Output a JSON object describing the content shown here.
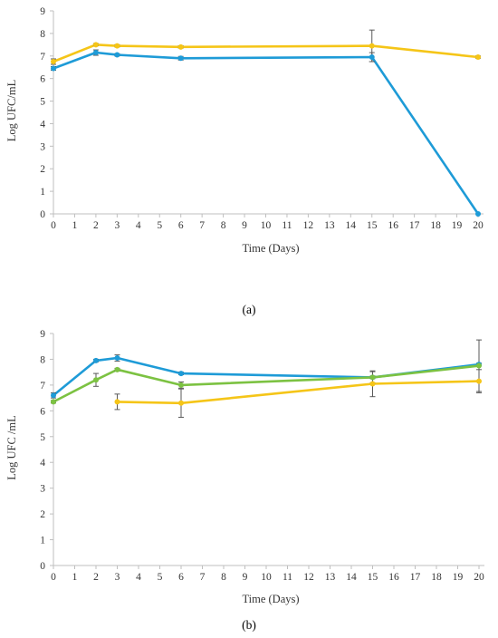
{
  "chart_data": [
    {
      "type": "line",
      "panel_label": "(a)",
      "xlabel": "Time (Days)",
      "ylabel": "Log UFC/mL",
      "xlim": [
        0,
        20
      ],
      "ylim": [
        0,
        9
      ],
      "xticks": [
        0,
        1,
        2,
        3,
        4,
        5,
        6,
        7,
        8,
        9,
        10,
        11,
        12,
        13,
        14,
        15,
        16,
        17,
        18,
        19,
        20
      ],
      "yticks": [
        0,
        1,
        2,
        3,
        4,
        5,
        6,
        7,
        8,
        9
      ],
      "series": [
        {
          "color": "#F5C518",
          "points": [
            {
              "x": 0,
              "y": 6.75,
              "err": 0.12
            },
            {
              "x": 2,
              "y": 7.5,
              "err": 0.05
            },
            {
              "x": 3,
              "y": 7.45,
              "err": 0.05
            },
            {
              "x": 6,
              "y": 7.4,
              "err": 0.05
            },
            {
              "x": 15,
              "y": 7.45,
              "err": 0.7
            },
            {
              "x": 20,
              "y": 6.95,
              "err": 0.05
            }
          ]
        },
        {
          "color": "#1E9BD7",
          "points": [
            {
              "x": 0,
              "y": 6.45,
              "err": 0.08
            },
            {
              "x": 2,
              "y": 7.15,
              "err": 0.12
            },
            {
              "x": 3,
              "y": 7.05,
              "err": 0.05
            },
            {
              "x": 6,
              "y": 6.9,
              "err": 0.08
            },
            {
              "x": 15,
              "y": 6.95,
              "err": 0.2
            },
            {
              "x": 20,
              "y": 0,
              "err": 0
            }
          ]
        }
      ]
    },
    {
      "type": "line",
      "panel_label": "(b)",
      "xlabel": "Time (Days)",
      "ylabel": "Log UFC /mL",
      "xlim": [
        0,
        20
      ],
      "ylim": [
        0,
        9
      ],
      "xticks": [
        0,
        1,
        2,
        3,
        4,
        5,
        6,
        7,
        8,
        9,
        10,
        11,
        12,
        13,
        14,
        15,
        16,
        17,
        18,
        19,
        20
      ],
      "yticks": [
        0,
        1,
        2,
        3,
        4,
        5,
        6,
        7,
        8,
        9
      ],
      "series": [
        {
          "color": "#1E9BD7",
          "points": [
            {
              "x": 0,
              "y": 6.6,
              "err": 0.1
            },
            {
              "x": 2,
              "y": 7.95,
              "err": 0.05
            },
            {
              "x": 3,
              "y": 8.05,
              "err": 0.12
            },
            {
              "x": 6,
              "y": 7.45,
              "err": 0.05
            },
            {
              "x": 15,
              "y": 7.3,
              "err": 0.05
            },
            {
              "x": 20,
              "y": 7.8,
              "err": 0.05
            }
          ]
        },
        {
          "color": "#7CC242",
          "points": [
            {
              "x": 0,
              "y": 6.35,
              "err": 0.05
            },
            {
              "x": 2,
              "y": 7.2,
              "err": 0.25
            },
            {
              "x": 3,
              "y": 7.6,
              "err": 0.05
            },
            {
              "x": 6,
              "y": 7.0,
              "err": 0.12
            },
            {
              "x": 15,
              "y": 7.3,
              "err": 0.22
            },
            {
              "x": 20,
              "y": 7.75,
              "err": 1.0
            }
          ]
        },
        {
          "color": "#F5C518",
          "points": [
            {
              "x": 3,
              "y": 6.35,
              "err": 0.3
            },
            {
              "x": 6,
              "y": 6.3,
              "err": 0.55
            },
            {
              "x": 15,
              "y": 7.05,
              "err": 0.5
            },
            {
              "x": 20,
              "y": 7.15,
              "err": 0.45
            }
          ]
        }
      ]
    }
  ]
}
